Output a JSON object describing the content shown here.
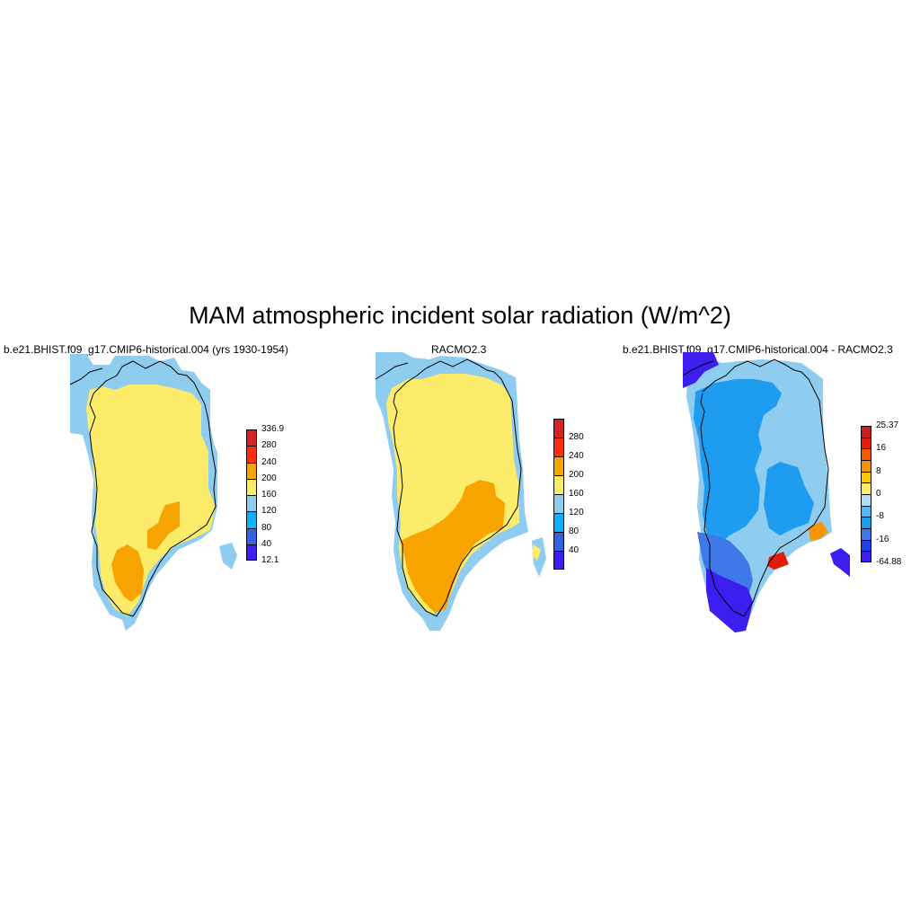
{
  "figure": {
    "title": "MAM atmospheric incident solar radiation (W/m^2)"
  },
  "panels": [
    {
      "id": "model",
      "title": "b.e21.BHIST.f09_g17.CMIP6-historical.004 (yrs 1930-1954)",
      "colorbar": {
        "colors": [
          "#3d1ef0",
          "#3363e0",
          "#0db0ff",
          "#8fcdf0",
          "#fdec6a",
          "#f7a300",
          "#ff2d0a",
          "#d42424"
        ],
        "labels": [
          "12.1",
          "40",
          "80",
          "120",
          "160",
          "200",
          "240",
          "280",
          "336.9"
        ]
      }
    },
    {
      "id": "racmo",
      "title": "RACMO2.3",
      "colorbar": {
        "colors": [
          "#3d1ef0",
          "#3363e0",
          "#0db0ff",
          "#8fcdf0",
          "#fdec6a",
          "#f7a300",
          "#ff2d0a",
          "#d42424"
        ],
        "labels": [
          "",
          "40",
          "80",
          "120",
          "160",
          "200",
          "240",
          "280",
          ""
        ]
      }
    },
    {
      "id": "difference",
      "title": "b.e21.BHIST.f09_g17.CMIP6-historical.004 - RACMO2.3",
      "colorbar": {
        "colors": [
          "#3d1ef0",
          "#2140e6",
          "#3f78e8",
          "#1e9cf0",
          "#54b8f0",
          "#b2dcf0",
          "#fbee6a",
          "#f9c700",
          "#f79400",
          "#f05a00",
          "#e21b0a",
          "#c81f1f"
        ],
        "labels": [
          "-64.88",
          "",
          "-16",
          "",
          "-8",
          "",
          "0",
          "",
          "8",
          "",
          "16",
          "",
          "25.37"
        ]
      }
    }
  ]
}
